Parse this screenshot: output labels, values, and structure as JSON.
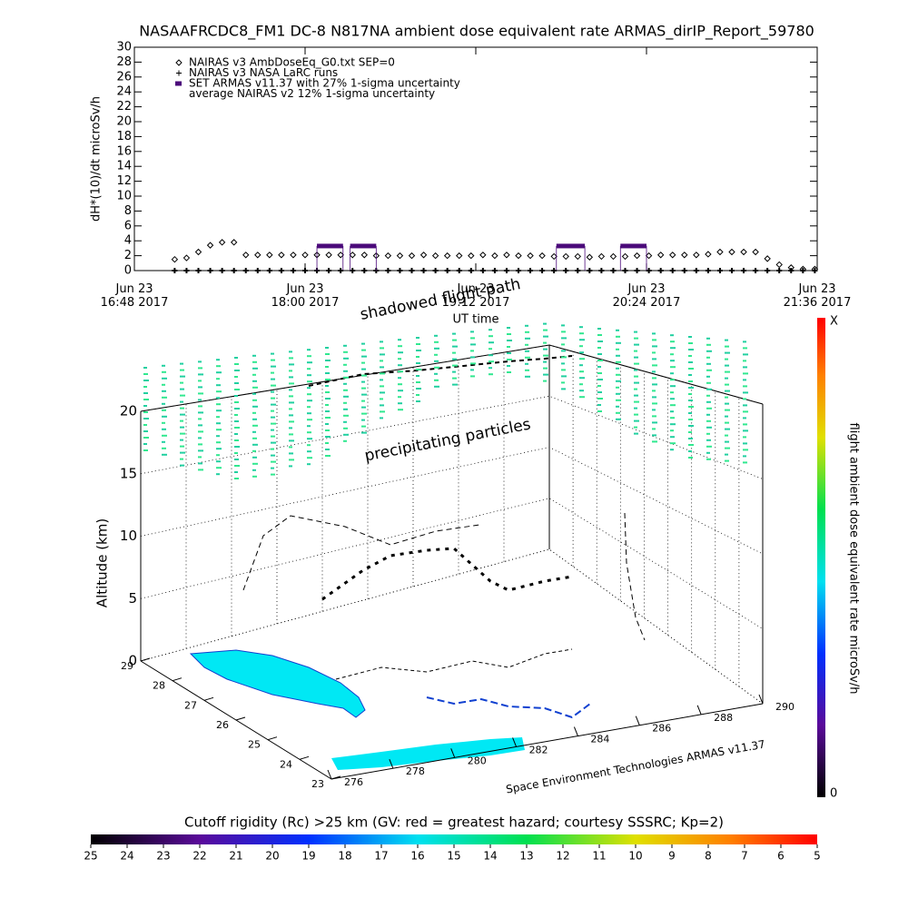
{
  "title": "NASAAFRCDC8_FM1 DC-8   N817NA ambient dose equivalent rate ARMAS_dirIP_Report_59780",
  "chart_data": [
    {
      "type": "line",
      "ylabel": "dH*(10)/dt microSv/h",
      "xlabel": "UT time",
      "xlim": [
        0,
        288
      ],
      "xticks": [
        {
          "value": 0,
          "label": "Jun 23\n16:48 2017"
        },
        {
          "value": 72,
          "label": "Jun 23\n18:00 2017"
        },
        {
          "value": 144,
          "label": "Jun 23\n19:12 2017"
        },
        {
          "value": 216,
          "label": "Jun 23\n20:24 2017"
        },
        {
          "value": 288,
          "label": "Jun 23\n21:36 2017"
        }
      ],
      "ylim": [
        0,
        30
      ],
      "yticks": [
        0,
        2,
        4,
        6,
        8,
        10,
        12,
        14,
        16,
        18,
        20,
        22,
        24,
        26,
        28,
        30
      ],
      "series": [
        {
          "name": "NAIRAS v3 AmbDoseEq_G0.txt SEP=0",
          "marker": "diamond",
          "color": "#000000",
          "x": [
            17,
            22,
            27,
            32,
            37,
            42,
            47,
            52,
            57,
            62,
            67,
            72,
            77,
            82,
            87,
            92,
            97,
            102,
            107,
            112,
            117,
            122,
            127,
            132,
            137,
            142,
            147,
            152,
            157,
            162,
            167,
            172,
            177,
            182,
            187,
            192,
            197,
            202,
            207,
            212,
            217,
            222,
            227,
            232,
            237,
            242,
            247,
            252,
            257,
            262,
            267,
            272,
            277,
            282,
            287
          ],
          "values": [
            1.5,
            1.7,
            2.5,
            3.4,
            3.8,
            3.8,
            2.1,
            2.1,
            2.1,
            2.1,
            2.1,
            2.1,
            2.1,
            2.1,
            2.1,
            2.1,
            2.1,
            2.0,
            2.0,
            2.0,
            2.0,
            2.1,
            2.0,
            2.0,
            2.0,
            2.0,
            2.1,
            2.0,
            2.1,
            2.0,
            2.0,
            2.0,
            1.9,
            1.9,
            1.9,
            1.8,
            1.9,
            1.9,
            1.9,
            2.0,
            2.0,
            2.1,
            2.1,
            2.1,
            2.1,
            2.2,
            2.5,
            2.5,
            2.5,
            2.5,
            1.6,
            0.8,
            0.4,
            0.2,
            0.2
          ]
        },
        {
          "name": "NAIRAS v3 NASA LaRC runs",
          "marker": "plus",
          "color": "#000000",
          "x": [
            17,
            22,
            27,
            32,
            37,
            42,
            47,
            52,
            57,
            62,
            67,
            72,
            77,
            82,
            87,
            92,
            97,
            102,
            107,
            112,
            117,
            122,
            127,
            132,
            137,
            142,
            147,
            152,
            157,
            162,
            167,
            172,
            177,
            182,
            187,
            192,
            197,
            202,
            207,
            212,
            217,
            222,
            227,
            232,
            237,
            242,
            247,
            252,
            257,
            262,
            267,
            272,
            277,
            282,
            287
          ],
          "values": [
            0,
            0,
            0,
            0,
            0,
            0,
            0,
            0,
            0,
            0,
            0,
            0,
            0,
            0,
            0,
            0,
            0,
            0,
            0,
            0,
            0,
            0,
            0,
            0,
            0,
            0,
            0,
            0,
            0,
            0,
            0,
            0,
            0,
            0,
            0,
            0,
            0,
            0,
            0,
            0,
            0,
            0,
            0,
            0,
            0,
            0,
            0,
            0,
            0,
            0,
            0,
            0,
            0,
            0,
            0
          ]
        },
        {
          "name": "SET ARMAS v11.37 with 27% 1-sigma uncertainty",
          "marker": "bar",
          "color": "#4b0a7a",
          "x": [
            [
              77,
              88
            ],
            [
              91,
              102
            ],
            [
              178,
              190
            ],
            [
              205,
              216
            ]
          ],
          "values": [
            3.3,
            3.3,
            3.3,
            3.3
          ]
        },
        {
          "name": "average NAIRAS v2 12% 1-sigma uncertainty",
          "marker": "none",
          "color": "#000000"
        }
      ]
    },
    {
      "type": "surface3d",
      "zlabel": "Altitude (km)",
      "zlim": [
        0,
        20
      ],
      "zticks": [
        0,
        5,
        10,
        15,
        20
      ],
      "ylim": [
        29,
        23
      ],
      "yticks": [
        29,
        28,
        27,
        26,
        25,
        24,
        23
      ],
      "xlim": [
        276,
        290
      ],
      "xticks": [
        276,
        278,
        280,
        282,
        284,
        286,
        288,
        290
      ],
      "annotations": [
        "shadowed flight path",
        "precipitating particles",
        "Space Environment Technologies ARMAS v11.37"
      ],
      "colorbar": {
        "label": "flight ambient dose equivalent rate microSv/h",
        "ticks": [
          "X",
          "0"
        ]
      },
      "cutoff_colorbar": {
        "label": "Cutoff rigidity (Rc) >25 km (GV: red = greatest hazard; courtesy SSSRC; Kp=2)",
        "clim": [
          25,
          5
        ],
        "ticks": [
          25,
          24,
          23,
          22,
          21,
          20,
          19,
          18,
          17,
          16,
          15,
          14,
          13,
          12,
          11,
          10,
          9,
          8,
          7,
          6,
          5
        ]
      }
    }
  ]
}
